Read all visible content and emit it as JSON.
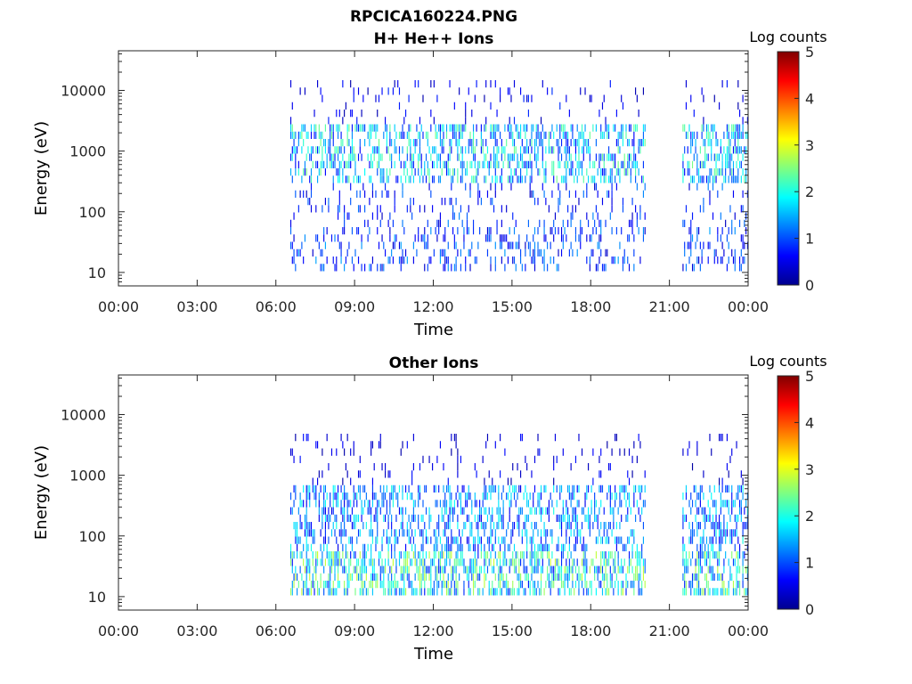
{
  "figure_title": "RPCICA160224.PNG",
  "chart_data": [
    {
      "type": "heatmap",
      "title": "H+ He++ Ions",
      "xlabel": "Time",
      "ylabel": "Energy (eV)",
      "yscale": "log",
      "ylim": [
        6,
        45000
      ],
      "y_ticks": [
        10,
        100,
        1000,
        10000
      ],
      "y_tick_labels": [
        "10",
        "100",
        "1000",
        "10000"
      ],
      "x_range_hours": [
        0,
        24
      ],
      "x_ticks_hours": [
        0,
        3,
        6,
        9,
        12,
        15,
        18,
        21,
        24
      ],
      "x_tick_labels": [
        "00:00",
        "03:00",
        "06:00",
        "09:00",
        "12:00",
        "15:00",
        "18:00",
        "21:00",
        "00:00"
      ],
      "colorbar": {
        "label": "Log counts",
        "min": 0,
        "max": 5,
        "ticks": [
          0,
          1,
          2,
          3,
          4,
          5
        ],
        "colormap": "jet"
      },
      "data_intervals_hours": [
        [
          6.55,
          20.1
        ],
        [
          21.5,
          24.0
        ]
      ],
      "bands": [
        {
          "emin": 300,
          "emax": 3000,
          "density": 0.45,
          "level": 1.7
        },
        {
          "emin": 3000,
          "emax": 15000,
          "density": 0.07,
          "level": 0.6
        },
        {
          "emin": 50,
          "emax": 300,
          "density": 0.14,
          "level": 0.9
        },
        {
          "emin": 12,
          "emax": 50,
          "density": 0.22,
          "level": 1.0
        }
      ]
    },
    {
      "type": "heatmap",
      "title": "Other Ions",
      "xlabel": "Time",
      "ylabel": "Energy (eV)",
      "yscale": "log",
      "ylim": [
        6,
        45000
      ],
      "y_ticks": [
        10,
        100,
        1000,
        10000
      ],
      "y_tick_labels": [
        "10",
        "100",
        "1000",
        "10000"
      ],
      "x_range_hours": [
        0,
        24
      ],
      "x_ticks_hours": [
        0,
        3,
        6,
        9,
        12,
        15,
        18,
        21,
        24
      ],
      "x_tick_labels": [
        "00:00",
        "03:00",
        "06:00",
        "09:00",
        "12:00",
        "15:00",
        "18:00",
        "21:00",
        "00:00"
      ],
      "colorbar": {
        "label": "Log counts",
        "min": 0,
        "max": 5,
        "ticks": [
          0,
          1,
          2,
          3,
          4,
          5
        ],
        "colormap": "jet"
      },
      "data_intervals_hours": [
        [
          6.55,
          20.1
        ],
        [
          21.5,
          24.0
        ]
      ],
      "bands": [
        {
          "emin": 12,
          "emax": 60,
          "density": 0.55,
          "level": 2.0
        },
        {
          "emin": 60,
          "emax": 600,
          "density": 0.4,
          "level": 1.4
        },
        {
          "emin": 600,
          "emax": 5000,
          "density": 0.08,
          "level": 0.5
        }
      ]
    }
  ]
}
